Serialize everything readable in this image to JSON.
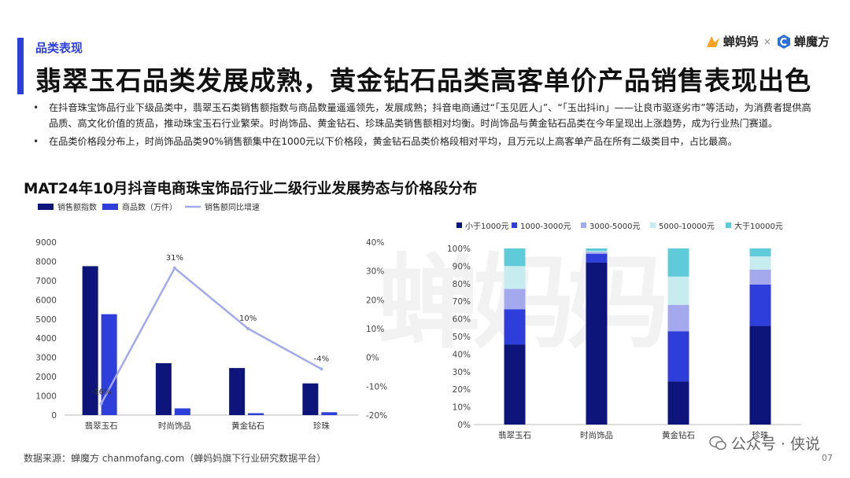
{
  "header": {
    "section_label": "品类表现",
    "title": "翡翠玉石品类发展成熟，黄金钻石品类高客单价产品销售表现出色",
    "logo_left": "蝉妈妈",
    "logo_sep": "×",
    "logo_right": "蝉魔方"
  },
  "bullets": [
    "在抖音珠宝饰品行业下级品类中，翡翠玉石类销售额指数与商品数量遥遥领先，发展成熟；抖音电商通过“「玉见匠人」”、“「玉出抖in」——让良市驱逐劣市”等活动，为消费者提供高品质、高文化价值的货品，推动珠宝玉石行业繁荣。时尚饰品、黄金钻石、珍珠品类销售额相对均衡。时尚饰品与黄金钻石品类在今年呈现出上涨趋势，成为行业热门赛道。",
    "在品类价格段分布上，时尚饰品品类90%销售额集中在1000元以下价格段，黄金钻石品类价格段相对平均，且万元以上高客单产品在所有二级类目中，占比最高。"
  ],
  "chart_title": "MAT24年10月抖音电商珠宝饰品行业二级行业发展势态与价格段分布",
  "chart_data": [
    {
      "type": "bar",
      "categories": [
        "翡翠玉石",
        "时尚饰品",
        "黄金钻石",
        "珍珠"
      ],
      "series": [
        {
          "name": "销售额指数",
          "type": "bar",
          "axis": "left",
          "values": [
            7750,
            2700,
            2450,
            1650
          ],
          "color": "#0d157a"
        },
        {
          "name": "商品数（万件）",
          "type": "bar",
          "axis": "left",
          "values": [
            5250,
            350,
            100,
            150
          ],
          "color": "#2d3edb"
        },
        {
          "name": "销售额同比增速",
          "type": "line",
          "axis": "right",
          "values": [
            -16,
            31,
            10,
            -4
          ],
          "color": "#a3a9ec"
        }
      ],
      "data_labels": [
        "-16%",
        "31%",
        "10%",
        "-4%"
      ],
      "y_left": {
        "min": 0,
        "max": 9000,
        "ticks": [
          "0",
          "1000",
          "2000",
          "3000",
          "4000",
          "5000",
          "6000",
          "7000",
          "8000",
          "9000"
        ]
      },
      "y_right": {
        "min": -20,
        "max": 40,
        "ticks": [
          "-20%",
          "-10%",
          "0%",
          "10%",
          "20%",
          "30%",
          "40%"
        ]
      },
      "legend_position": "top-left",
      "grid": false
    },
    {
      "type": "bar",
      "stacked": true,
      "percent": true,
      "categories": [
        "翡翠玉石",
        "时尚饰品",
        "黄金钻石",
        "珍珠"
      ],
      "series": [
        {
          "name": "小于1000元",
          "values": [
            45.5,
            92,
            24.5,
            56
          ],
          "color": "#0d157a"
        },
        {
          "name": "1000-3000元",
          "values": [
            20,
            5,
            28.5,
            23.5
          ],
          "color": "#2d3edb"
        },
        {
          "name": "3000-5000元",
          "values": [
            11.5,
            1,
            15,
            8.5
          ],
          "color": "#a3a9ec"
        },
        {
          "name": "5000-10000元",
          "values": [
            13,
            0.5,
            16,
            7.5
          ],
          "color": "#c7ecef"
        },
        {
          "name": "大于10000元",
          "values": [
            10,
            1.5,
            16,
            4.5
          ],
          "color": "#5fcbd9"
        }
      ],
      "y": {
        "min": 0,
        "max": 100,
        "ticks": [
          "0%",
          "10%",
          "20%",
          "30%",
          "40%",
          "50%",
          "60%",
          "70%",
          "80%",
          "90%",
          "100%"
        ]
      },
      "legend_position": "top",
      "grid": false
    }
  ],
  "footer": {
    "source": "数据来源：蝉魔方 chanmofang.com（蝉妈妈旗下行业研究数据平台）",
    "watermark": "公众号 · 侠说",
    "page": "07"
  }
}
